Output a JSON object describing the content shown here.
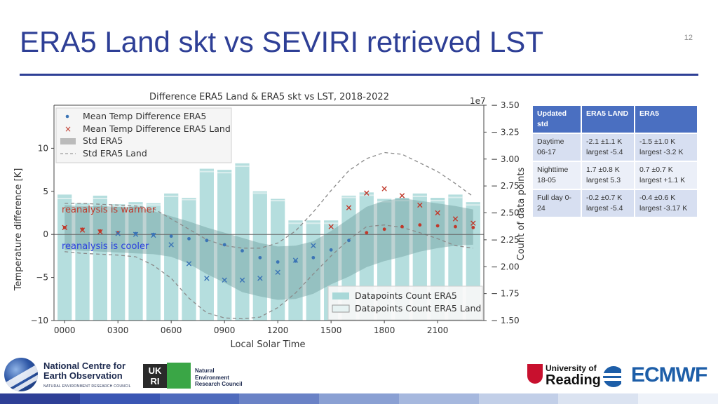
{
  "slide": {
    "title": "ERA5 Land skt vs SEVIRI retrieved LST",
    "page_number": "12"
  },
  "table": {
    "headers": [
      "Updated std",
      "ERA5 LAND",
      "ERA5"
    ],
    "rows": [
      {
        "label": "Daytime 06-17",
        "era5land": "-2.1 ±1.1 K largest -5.4",
        "era5": "-1.5 ±1.0 K largest -3.2 K"
      },
      {
        "label": "Nighttime 18-05",
        "era5land": "1.7 ±0.8 K largest 5.3",
        "era5": "0.7 ±0.7 K largest +1.1 K"
      },
      {
        "label": "Full day 0-24",
        "era5land": "-0.2 ±0.7 K largest -5.4",
        "era5": "-0.4 ±0.6 K largest -3.17 K"
      }
    ]
  },
  "logos": {
    "ncos_line1": "National Centre for",
    "ncos_line2": "Earth Observation",
    "ncos_line3": "NATURAL ENVIRONMENT RESEARCH COUNCIL",
    "ukri_a": "UK",
    "ukri_b": "RI",
    "nerc_line1": "Natural",
    "nerc_line2": "Environment",
    "nerc_line3": "Research Council",
    "reading_line1": "University of",
    "reading_line2": "Reading",
    "ecmwf": "ECMWF"
  },
  "colors": {
    "title": "#2e3f96",
    "bars": "#a8d8d8",
    "band": "#6f9e9e",
    "era5_marker": "#3b74b5",
    "era5land_marker": "#c0392b",
    "annotation_warm": "#c0392b",
    "annotation_cool": "#2a3fe0"
  },
  "chart_data": {
    "type": "bar",
    "title": "Difference ERA5 Land & ERA5 skt vs LST, 2018-2022",
    "xlabel": "Local Solar Time",
    "ylabel_left": "Temperature difference [K]",
    "ylabel_right": "Count of data points",
    "right_scale_label": "1e7",
    "x_tick_labels": [
      "0000",
      "0300",
      "0600",
      "0900",
      "1200",
      "1500",
      "1800",
      "2100"
    ],
    "x_tick_hours": [
      0,
      3,
      6,
      9,
      12,
      15,
      18,
      21
    ],
    "hours": [
      0,
      1,
      2,
      3,
      4,
      5,
      6,
      7,
      8,
      9,
      10,
      11,
      12,
      13,
      14,
      15,
      16,
      17,
      18,
      19,
      20,
      21,
      22,
      23
    ],
    "ylim_left": [
      -10,
      15
    ],
    "yticks_left": [
      "−10",
      "−5",
      "0",
      "5",
      "10"
    ],
    "ylim_right": [
      1.5,
      3.5
    ],
    "yticks_right": [
      "1.50",
      "1.75",
      "2.00",
      "2.25",
      "2.50",
      "2.75",
      "3.00",
      "3.25",
      "3.50"
    ],
    "legend": {
      "placement": "top-left",
      "entries": [
        "Mean Temp Difference ERA5",
        "Mean Temp Difference ERA5 Land",
        "Std ERA5",
        "Std ERA5 Land"
      ]
    },
    "legend_bars": {
      "placement": "bottom-right",
      "entries": [
        "Datapoints Count ERA5",
        "Datapoints Count ERA5 Land"
      ]
    },
    "annotations": [
      "reanalysis is warmer",
      "reanalysis is cooler"
    ],
    "grid": false,
    "series": [
      {
        "name": "Mean Temp Difference ERA5",
        "marker": "dot",
        "values": [
          0.8,
          0.6,
          0.4,
          0.2,
          0.1,
          0.0,
          -0.2,
          -0.5,
          -0.7,
          -1.2,
          -1.9,
          -2.7,
          -3.2,
          -3.1,
          -2.7,
          -1.8,
          -0.7,
          0.2,
          0.6,
          0.9,
          1.1,
          1.0,
          0.9,
          0.8
        ]
      },
      {
        "name": "Mean Temp Difference ERA5 Land",
        "marker": "x",
        "values": [
          0.8,
          0.5,
          0.3,
          0.1,
          0.0,
          -0.1,
          -1.2,
          -3.4,
          -5.1,
          -5.3,
          -5.3,
          -5.1,
          -4.4,
          -3.0,
          -1.3,
          0.9,
          3.1,
          4.8,
          5.3,
          4.5,
          3.4,
          2.5,
          1.8,
          1.3
        ]
      },
      {
        "name": "Std ERA5",
        "type": "band",
        "upper": [
          3.4,
          3.3,
          3.3,
          3.2,
          3.2,
          2.7,
          2.1,
          1.5,
          0.8,
          0.2,
          -0.4,
          -1.0,
          -1.4,
          -1.3,
          -0.8,
          0.4,
          1.8,
          3.2,
          3.9,
          4.2,
          3.9,
          3.6,
          3.3,
          2.9
        ],
        "lower": [
          -1.8,
          -1.9,
          -2.0,
          -2.1,
          -2.2,
          -2.3,
          -2.6,
          -3.4,
          -4.6,
          -5.6,
          -6.7,
          -7.2,
          -7.6,
          -7.5,
          -6.9,
          -5.8,
          -4.9,
          -3.8,
          -3.1,
          -2.6,
          -2.0,
          -1.6,
          -1.3,
          -1.2
        ]
      },
      {
        "name": "Std ERA5 Land",
        "type": "dashed",
        "upper": [
          3.6,
          3.6,
          3.5,
          3.4,
          3.3,
          3.0,
          1.8,
          0.6,
          -0.6,
          -1.3,
          -1.6,
          -1.6,
          -1.0,
          0.4,
          2.6,
          5.1,
          7.4,
          8.8,
          9.5,
          9.3,
          8.3,
          7.3,
          5.9,
          4.4
        ],
        "lower": [
          -2.0,
          -2.2,
          -2.3,
          -2.4,
          -2.6,
          -3.6,
          -5.1,
          -7.4,
          -9.1,
          -9.7,
          -9.8,
          -9.6,
          -8.5,
          -6.8,
          -4.6,
          -2.5,
          -0.6,
          0.9,
          1.1,
          0.8,
          0.2,
          -0.5,
          -1.3,
          -1.6
        ]
      },
      {
        "name": "Datapoints Count ERA5",
        "type": "bar",
        "values": [
          2.67,
          2.59,
          2.66,
          2.58,
          2.6,
          2.59,
          2.68,
          2.64,
          2.91,
          2.9,
          2.96,
          2.7,
          2.63,
          2.43,
          2.43,
          2.43,
          2.66,
          2.69,
          2.63,
          2.64,
          2.68,
          2.64,
          2.67,
          2.6
        ]
      },
      {
        "name": "Datapoints Count ERA5 Land",
        "type": "bar",
        "values": [
          2.64,
          2.57,
          2.64,
          2.57,
          2.58,
          2.58,
          2.66,
          2.63,
          2.89,
          2.88,
          2.94,
          2.69,
          2.62,
          2.41,
          2.41,
          2.41,
          2.65,
          2.67,
          2.61,
          2.62,
          2.66,
          2.62,
          2.65,
          2.58
        ]
      }
    ]
  }
}
